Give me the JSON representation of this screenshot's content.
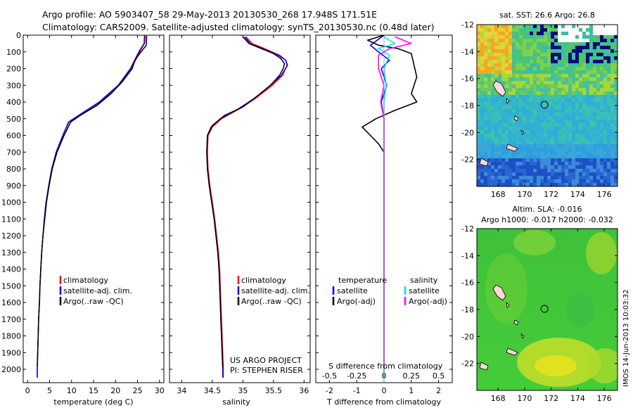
{
  "header": {
    "line1": "Argo profile: AO 5903407_58 29-May-2013 20130530_268 17.948S 171.51E",
    "line2": "Climatology: CARS2009. Satellite-adjusted climatology: synTS_20130530.nc (0.48d later)"
  },
  "colors": {
    "climatology": "#ff0000",
    "satellite": "#0000ff",
    "argo": "#000000",
    "sal_satellite": "#00e5ee",
    "sal_argo": "#ff00ff"
  },
  "chart_data": [
    {
      "type": "line",
      "name": "temperature",
      "xlabel": "temperature (deg C)",
      "xlim": [
        -1,
        31
      ],
      "ylim": [
        0,
        2080
      ],
      "x_ticks": [
        0,
        5,
        10,
        15,
        20,
        25,
        30
      ],
      "y_ticks": [
        0,
        100,
        200,
        300,
        400,
        500,
        600,
        700,
        800,
        900,
        1000,
        1100,
        1200,
        1300,
        1400,
        1500,
        1600,
        1700,
        1800,
        1900,
        2000
      ],
      "legend": [
        "climatology",
        "satellite-adj. clim.",
        "Argo(..raw -QC)"
      ],
      "series": [
        {
          "name": "climatology",
          "color": "#ff0000",
          "points": [
            [
              26.8,
              0
            ],
            [
              26.6,
              50
            ],
            [
              25.5,
              100
            ],
            [
              23.6,
              200
            ],
            [
              20.8,
              300
            ],
            [
              16.5,
              400
            ],
            [
              11.8,
              480
            ],
            [
              9.4,
              520
            ],
            [
              8,
              600
            ],
            [
              6.5,
              700
            ],
            [
              5.5,
              800
            ],
            [
              4.8,
              900
            ],
            [
              4.2,
              1000
            ],
            [
              3.8,
              1100
            ],
            [
              3.5,
              1200
            ],
            [
              3.2,
              1300
            ],
            [
              3,
              1400
            ],
            [
              2.8,
              1500
            ],
            [
              2.7,
              1600
            ],
            [
              2.5,
              1700
            ],
            [
              2.4,
              1800
            ],
            [
              2.3,
              1900
            ],
            [
              2.2,
              2000
            ],
            [
              2.2,
              2050
            ]
          ]
        },
        {
          "name": "satellite-adj. clim.",
          "color": "#0000ff",
          "points": [
            [
              26.6,
              0
            ],
            [
              26.5,
              50
            ],
            [
              25.3,
              100
            ],
            [
              23.4,
              200
            ],
            [
              20.6,
              300
            ],
            [
              16.3,
              400
            ],
            [
              11.6,
              480
            ],
            [
              9.3,
              520
            ],
            [
              8,
              600
            ],
            [
              6.5,
              700
            ],
            [
              5.5,
              800
            ],
            [
              4.8,
              900
            ],
            [
              4.2,
              1000
            ],
            [
              3.8,
              1100
            ],
            [
              3.5,
              1200
            ],
            [
              3.2,
              1300
            ],
            [
              3,
              1400
            ],
            [
              2.8,
              1500
            ],
            [
              2.7,
              1600
            ],
            [
              2.5,
              1700
            ],
            [
              2.4,
              1800
            ],
            [
              2.3,
              1900
            ],
            [
              2.2,
              2000
            ],
            [
              2.2,
              2050
            ]
          ]
        },
        {
          "name": "Argo(..raw -QC)",
          "color": "#000000",
          "points": [
            [
              27.1,
              5
            ],
            [
              27,
              60
            ],
            [
              25.8,
              100
            ],
            [
              24.4,
              150
            ],
            [
              23.8,
              200
            ],
            [
              21.5,
              280
            ],
            [
              19,
              350
            ],
            [
              15.8,
              420
            ],
            [
              12,
              480
            ],
            [
              9.8,
              520
            ],
            [
              8.3,
              600
            ],
            [
              6.7,
              700
            ],
            [
              5.6,
              800
            ],
            [
              4.9,
              900
            ],
            [
              4.3,
              1000
            ],
            [
              3.9,
              1100
            ],
            [
              3.5,
              1200
            ],
            [
              3.2,
              1300
            ],
            [
              3,
              1400
            ],
            [
              2.8,
              1500
            ],
            [
              2.7,
              1600
            ],
            [
              2.5,
              1700
            ],
            [
              2.4,
              1800
            ],
            [
              2.3,
              1900
            ],
            [
              2.2,
              1980
            ]
          ]
        }
      ]
    },
    {
      "type": "line",
      "name": "salinity",
      "xlabel": "salinity",
      "xlim": [
        33.8,
        36.1
      ],
      "ylim": [
        0,
        2080
      ],
      "x_ticks": [
        34,
        34.5,
        35,
        35.5,
        36
      ],
      "legend": [
        "climatology",
        "satellite-adj. clim.",
        "Argo(..raw -QC)"
      ],
      "credit": [
        "US ARGO PROJECT",
        "PI: STEPHEN RISER"
      ],
      "series": [
        {
          "name": "climatology",
          "color": "#ff0000",
          "points": [
            [
              35.05,
              10
            ],
            [
              35.15,
              50
            ],
            [
              35.35,
              80
            ],
            [
              35.6,
              120
            ],
            [
              35.7,
              150
            ],
            [
              35.72,
              180
            ],
            [
              35.65,
              240
            ],
            [
              35.48,
              300
            ],
            [
              35.2,
              380
            ],
            [
              34.95,
              440
            ],
            [
              34.65,
              500
            ],
            [
              34.5,
              550
            ],
            [
              34.43,
              600
            ],
            [
              34.42,
              700
            ],
            [
              34.43,
              800
            ],
            [
              34.46,
              900
            ],
            [
              34.5,
              1000
            ],
            [
              34.54,
              1100
            ],
            [
              34.57,
              1200
            ],
            [
              34.6,
              1300
            ],
            [
              34.62,
              1400
            ],
            [
              34.63,
              1500
            ],
            [
              34.64,
              1600
            ],
            [
              34.65,
              1700
            ],
            [
              34.66,
              1800
            ],
            [
              34.67,
              1900
            ],
            [
              34.68,
              2000
            ],
            [
              34.68,
              2050
            ]
          ]
        },
        {
          "name": "satellite-adj. clim.",
          "color": "#0000ff",
          "points": [
            [
              35.03,
              10
            ],
            [
              35.12,
              50
            ],
            [
              35.32,
              80
            ],
            [
              35.58,
              120
            ],
            [
              35.7,
              150
            ],
            [
              35.73,
              180
            ],
            [
              35.63,
              240
            ],
            [
              35.45,
              300
            ],
            [
              35.18,
              380
            ],
            [
              34.93,
              440
            ],
            [
              34.63,
              500
            ],
            [
              34.48,
              550
            ],
            [
              34.42,
              600
            ],
            [
              34.41,
              700
            ],
            [
              34.42,
              800
            ],
            [
              34.45,
              900
            ],
            [
              34.49,
              1000
            ],
            [
              34.53,
              1100
            ],
            [
              34.56,
              1200
            ],
            [
              34.59,
              1300
            ],
            [
              34.61,
              1400
            ],
            [
              34.62,
              1500
            ],
            [
              34.63,
              1600
            ],
            [
              34.64,
              1700
            ],
            [
              34.65,
              1800
            ],
            [
              34.66,
              1900
            ],
            [
              34.67,
              2000
            ],
            [
              34.67,
              2050
            ]
          ]
        },
        {
          "name": "Argo(..raw -QC)",
          "color": "#000000",
          "points": [
            [
              35,
              10
            ],
            [
              35.1,
              50
            ],
            [
              35.3,
              80
            ],
            [
              35.5,
              110
            ],
            [
              35.62,
              140
            ],
            [
              35.68,
              170
            ],
            [
              35.66,
              200
            ],
            [
              35.6,
              240
            ],
            [
              35.45,
              300
            ],
            [
              35.25,
              360
            ],
            [
              35,
              430
            ],
            [
              34.7,
              480
            ],
            [
              34.5,
              540
            ],
            [
              34.42,
              600
            ],
            [
              34.41,
              700
            ],
            [
              34.42,
              800
            ],
            [
              34.45,
              900
            ],
            [
              34.49,
              1000
            ],
            [
              34.53,
              1100
            ],
            [
              34.56,
              1200
            ],
            [
              34.59,
              1300
            ],
            [
              34.61,
              1400
            ],
            [
              34.62,
              1500
            ],
            [
              34.63,
              1600
            ],
            [
              34.64,
              1700
            ],
            [
              34.65,
              1800
            ],
            [
              34.66,
              1900
            ],
            [
              34.67,
              1990
            ]
          ]
        }
      ]
    },
    {
      "type": "line",
      "name": "differences",
      "xlabel": "T difference from climatology",
      "xlabel_top": "S difference from climatology",
      "xlim": [
        -2.5,
        2.5
      ],
      "ylim": [
        0,
        2080
      ],
      "x_ticks": [
        -2,
        -1,
        0,
        1,
        2
      ],
      "s_ticks": [
        -0.5,
        -0.25,
        0,
        0.25,
        0.5
      ],
      "legend_temperature_title": "temperature",
      "legend_salinity_title": "salinity",
      "legend_labels": [
        "satellite",
        "Argo(-adj)",
        "satellite",
        "Argo(-adj)"
      ],
      "series": [
        {
          "name": "T satellite",
          "color": "#0000ff",
          "points": [
            [
              0,
              0
            ],
            [
              -0.5,
              60
            ],
            [
              -0.2,
              100
            ],
            [
              0.2,
              150
            ],
            [
              -0.1,
              200
            ],
            [
              0.1,
              300
            ],
            [
              -0.1,
              400
            ],
            [
              0,
              500
            ],
            [
              0,
              700
            ],
            [
              0,
              1000
            ],
            [
              0,
              1500
            ],
            [
              0,
              2000
            ],
            [
              0,
              2050
            ]
          ]
        },
        {
          "name": "T Argo(-adj)",
          "color": "#000000",
          "points": [
            [
              0,
              0
            ],
            [
              -0.6,
              30
            ],
            [
              -0.2,
              60
            ],
            [
              0.5,
              80
            ],
            [
              1.0,
              110
            ],
            [
              1.1,
              180
            ],
            [
              1.2,
              250
            ],
            [
              1.0,
              350
            ],
            [
              1.2,
              400
            ],
            [
              0.4,
              450
            ],
            [
              -0.3,
              500
            ],
            [
              -0.8,
              550
            ],
            [
              -0.5,
              600
            ],
            [
              -0.2,
              650
            ],
            [
              0,
              700
            ],
            [
              0,
              1000
            ],
            [
              0,
              1500
            ],
            [
              0,
              1990
            ]
          ]
        },
        {
          "name": "S satellite",
          "color": "#00e5ee",
          "points": [
            [
              0,
              10
            ],
            [
              0.1,
              50
            ],
            [
              -0.05,
              80
            ],
            [
              0.05,
              120
            ],
            [
              0,
              200
            ],
            [
              0.02,
              300
            ],
            [
              0,
              400
            ],
            [
              0,
              500
            ],
            [
              0,
              700
            ],
            [
              0,
              1000
            ],
            [
              0,
              1500
            ],
            [
              0,
              2050
            ]
          ]
        },
        {
          "name": "S Argo(-adj)",
          "color": "#ff00ff",
          "points": [
            [
              0.1,
              10
            ],
            [
              0.25,
              50
            ],
            [
              0.05,
              80
            ],
            [
              -0.05,
              120
            ],
            [
              -0.05,
              200
            ],
            [
              0,
              300
            ],
            [
              -0.03,
              400
            ],
            [
              0,
              500
            ],
            [
              0,
              700
            ],
            [
              0,
              1000
            ],
            [
              0,
              1500
            ],
            [
              0,
              1990
            ]
          ]
        }
      ]
    },
    {
      "type": "heatmap",
      "name": "sst-map",
      "title": "sat. SST: 26.6  Argo: 26.8",
      "x_ticks": [
        168,
        170,
        172,
        174,
        176
      ],
      "y_ticks": [
        -12,
        -14,
        -16,
        -18,
        -20,
        -22
      ],
      "xlim": [
        166.4,
        177
      ],
      "ylim": [
        -24,
        -12
      ],
      "marker": [
        171.5,
        -17.95
      ]
    },
    {
      "type": "heatmap",
      "name": "sla-map",
      "title_line1": "Altim. SLA: -0.016",
      "title_line2": "Argo h1000: -0.017 h2000: -0.032",
      "x_ticks": [
        168,
        170,
        172,
        174,
        176
      ],
      "y_ticks": [
        -12,
        -14,
        -16,
        -18,
        -20,
        -22
      ],
      "xlim": [
        166.4,
        177
      ],
      "ylim": [
        -24,
        -12
      ],
      "marker": [
        171.5,
        -17.95
      ]
    }
  ],
  "imos_stamp": "IMOS 14-Jun-2013 10:03:32"
}
